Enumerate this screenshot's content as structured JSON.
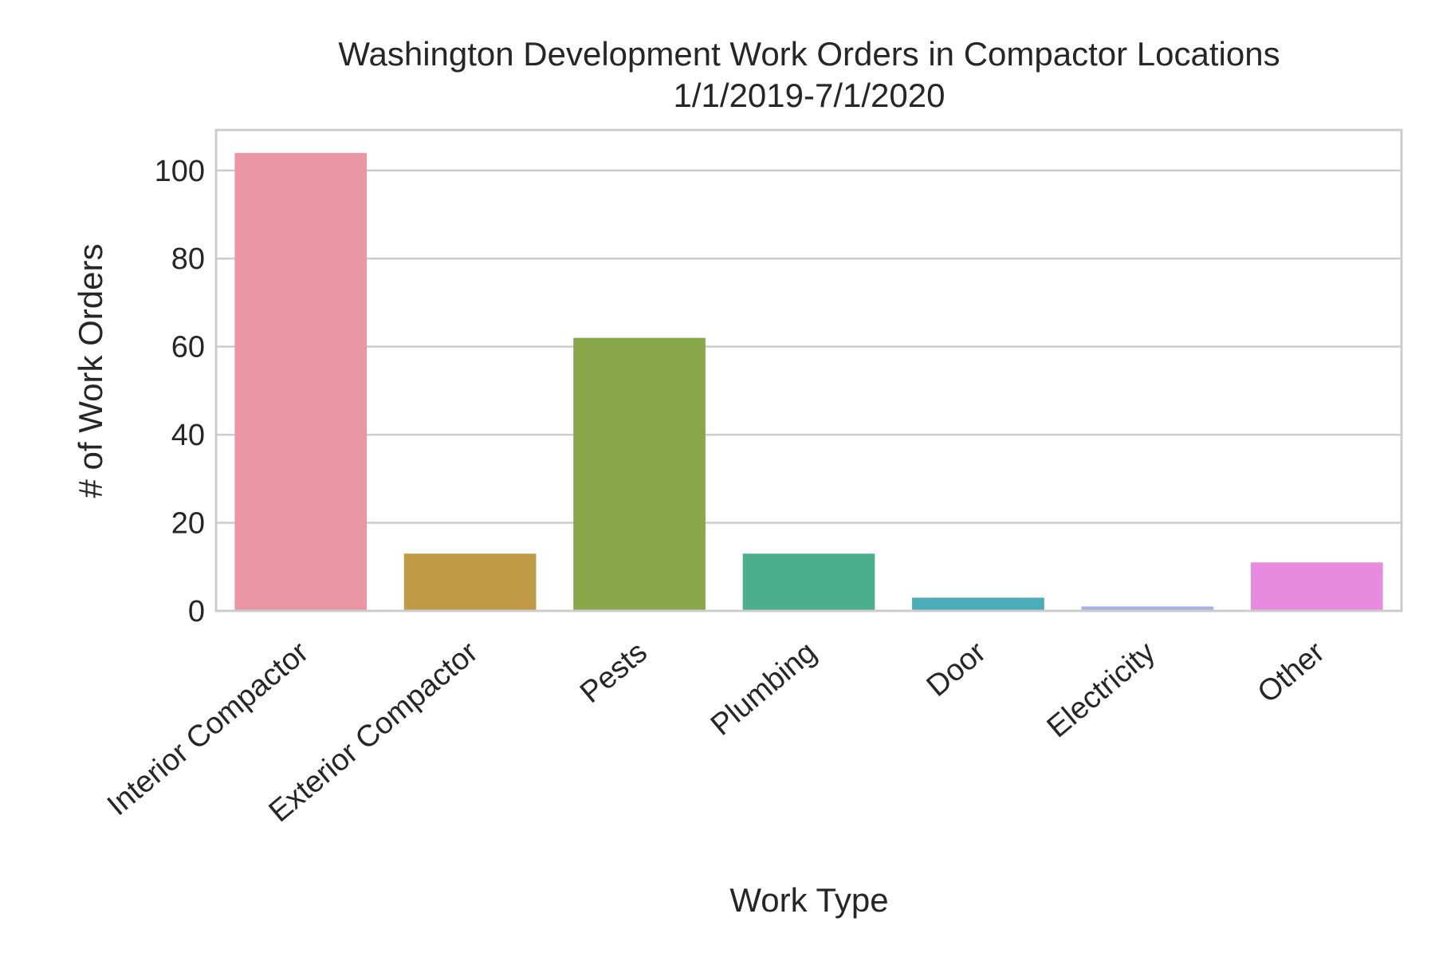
{
  "chart_data": {
    "type": "bar",
    "title_line1": "Washington Development Work Orders in Compactor Locations",
    "title_line2": "1/1/2019-7/1/2020",
    "xlabel": "Work Type",
    "ylabel": "# of Work Orders",
    "categories": [
      "Interior Compactor",
      "Exterior Compactor",
      "Pests",
      "Plumbing",
      "Door",
      "Electricity",
      "Other"
    ],
    "values": [
      104,
      13,
      62,
      13,
      3,
      1,
      11
    ],
    "colors": [
      "#ea96a3",
      "#c19a48",
      "#89a84a",
      "#4baf8d",
      "#4aadb7",
      "#a4b3e4",
      "#e88ae0"
    ],
    "yticks": [
      "0",
      "20",
      "40",
      "60",
      "80",
      "100"
    ],
    "ylim": [
      0,
      109.2
    ],
    "grid": true,
    "legend": "none"
  }
}
